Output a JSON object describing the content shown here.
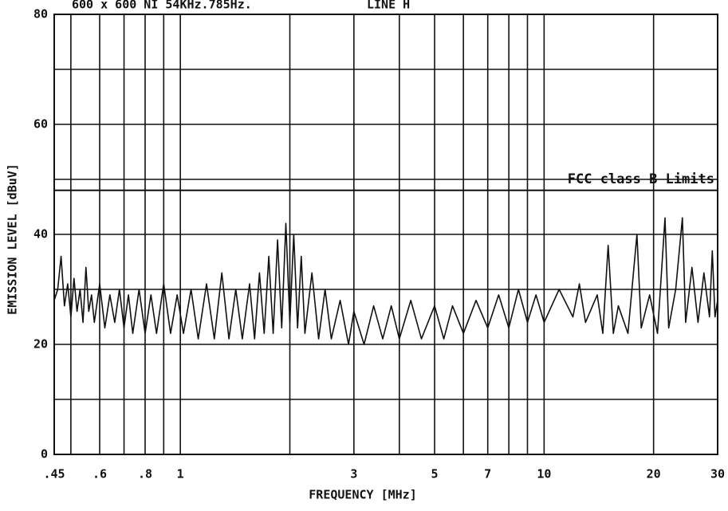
{
  "chart_data": {
    "type": "line",
    "title": "600 x 600 NI 54KHz.785Hz.",
    "subtitle": "LINE H",
    "x_label": "FREQUENCY [MHz]",
    "y_label": "EMISSION LEVEL [dBuV]",
    "x_log": true,
    "grid": true,
    "xlim": [
      0.45,
      30
    ],
    "ylim": [
      0,
      80
    ],
    "xticks": [
      {
        "value": 0.45,
        "label": ".45"
      },
      {
        "value": 0.6,
        "label": ".6"
      },
      {
        "value": 0.8,
        "label": ".8"
      },
      1,
      3,
      5,
      7,
      10,
      20,
      30
    ],
    "xgrid_minor": [
      0.5,
      0.7,
      0.9,
      2,
      4,
      6,
      8,
      9
    ],
    "yticks": [
      0,
      20,
      40,
      60,
      80
    ],
    "ygrid_minor": [
      10,
      30,
      50,
      70
    ],
    "limit": {
      "value": 48,
      "label": "FCC class B Limits"
    },
    "x": [
      0.45,
      0.46,
      0.47,
      0.48,
      0.49,
      0.5,
      0.51,
      0.52,
      0.53,
      0.54,
      0.55,
      0.56,
      0.57,
      0.58,
      0.6,
      0.62,
      0.64,
      0.66,
      0.68,
      0.7,
      0.72,
      0.74,
      0.77,
      0.8,
      0.83,
      0.86,
      0.9,
      0.94,
      0.98,
      1.02,
      1.07,
      1.12,
      1.18,
      1.24,
      1.3,
      1.36,
      1.42,
      1.48,
      1.55,
      1.6,
      1.65,
      1.7,
      1.75,
      1.8,
      1.85,
      1.9,
      1.95,
      2.0,
      2.05,
      2.1,
      2.15,
      2.2,
      2.3,
      2.4,
      2.5,
      2.6,
      2.75,
      2.9,
      3.0,
      3.2,
      3.4,
      3.6,
      3.8,
      4.0,
      4.3,
      4.6,
      5.0,
      5.3,
      5.6,
      6.0,
      6.5,
      7.0,
      7.5,
      8.0,
      8.5,
      9.0,
      9.5,
      10,
      11,
      12,
      12.5,
      13,
      14,
      14.5,
      15,
      15.5,
      16,
      17,
      18,
      18.5,
      19.5,
      20.5,
      21.5,
      22,
      23,
      24,
      24.5,
      25.5,
      26.5,
      27.5,
      28.5,
      29,
      29.5,
      30
    ],
    "series": [
      {
        "color": "#111111",
        "values": [
          28,
          30,
          36,
          27,
          31,
          25,
          32,
          26,
          30,
          24,
          34,
          26,
          29,
          24,
          31,
          23,
          29,
          24,
          30,
          23,
          29,
          22,
          30,
          22,
          29,
          22,
          31,
          22,
          29,
          22,
          30,
          21,
          31,
          21,
          33,
          21,
          30,
          21,
          31,
          21,
          33,
          22,
          36,
          22,
          39,
          23,
          42,
          24,
          40,
          23,
          36,
          22,
          33,
          21,
          30,
          21,
          28,
          20,
          26,
          20,
          27,
          21,
          27,
          21,
          28,
          21,
          27,
          21,
          27,
          22,
          28,
          23,
          29,
          23,
          30,
          24,
          29,
          24,
          30,
          25,
          31,
          24,
          29,
          22,
          38,
          22,
          27,
          22,
          40,
          23,
          29,
          22,
          43,
          23,
          30,
          43,
          24,
          34,
          24,
          33,
          25,
          37,
          25,
          28
        ]
      }
    ]
  }
}
